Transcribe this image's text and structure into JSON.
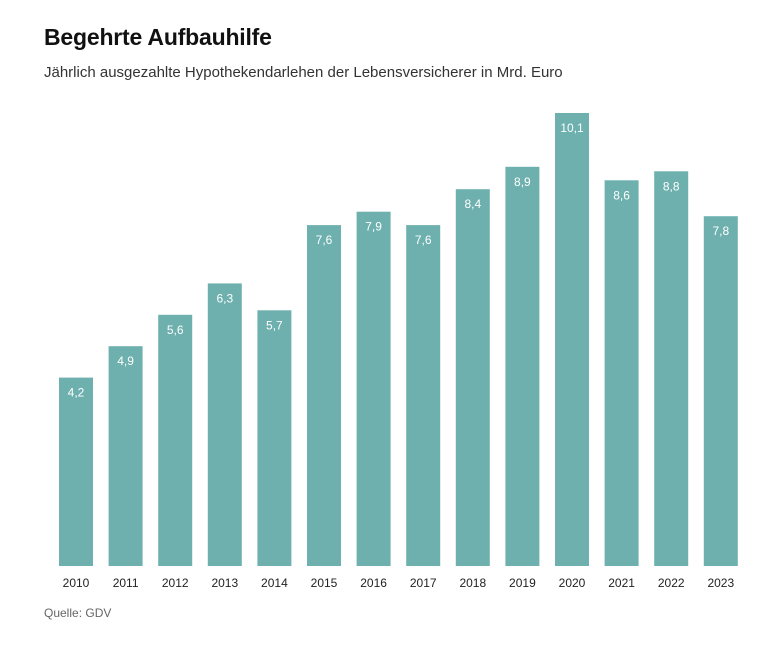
{
  "header": {
    "title": "Begehrte Aufbauhilfe",
    "subtitle": "Jährlich ausgezahlte Hypothekendarlehen der Lebensversicherer in Mrd. Euro"
  },
  "footer": {
    "source": "Quelle: GDV"
  },
  "colors": {
    "bar": "#6db0ae",
    "value_label": "#ffffff",
    "axis_label": "#222222"
  },
  "chart_data": {
    "type": "bar",
    "title": "Begehrte Aufbauhilfe",
    "subtitle": "Jährlich ausgezahlte Hypothekendarlehen der Lebensversicherer in Mrd. Euro",
    "categories": [
      "2010",
      "2011",
      "2012",
      "2013",
      "2014",
      "2015",
      "2016",
      "2017",
      "2018",
      "2019",
      "2020",
      "2021",
      "2022",
      "2023"
    ],
    "values": [
      4.2,
      4.9,
      5.6,
      6.3,
      5.7,
      7.6,
      7.9,
      7.6,
      8.4,
      8.9,
      10.1,
      8.6,
      8.8,
      7.8
    ],
    "value_labels": [
      "4,2",
      "4,9",
      "5,6",
      "6,3",
      "5,7",
      "7,6",
      "7,9",
      "7,6",
      "8,4",
      "8,9",
      "10,1",
      "8,6",
      "8,8",
      "7,8"
    ],
    "xlabel": "",
    "ylabel": "",
    "ylim": [
      0,
      10.1
    ],
    "grid": false,
    "legend": "none"
  }
}
